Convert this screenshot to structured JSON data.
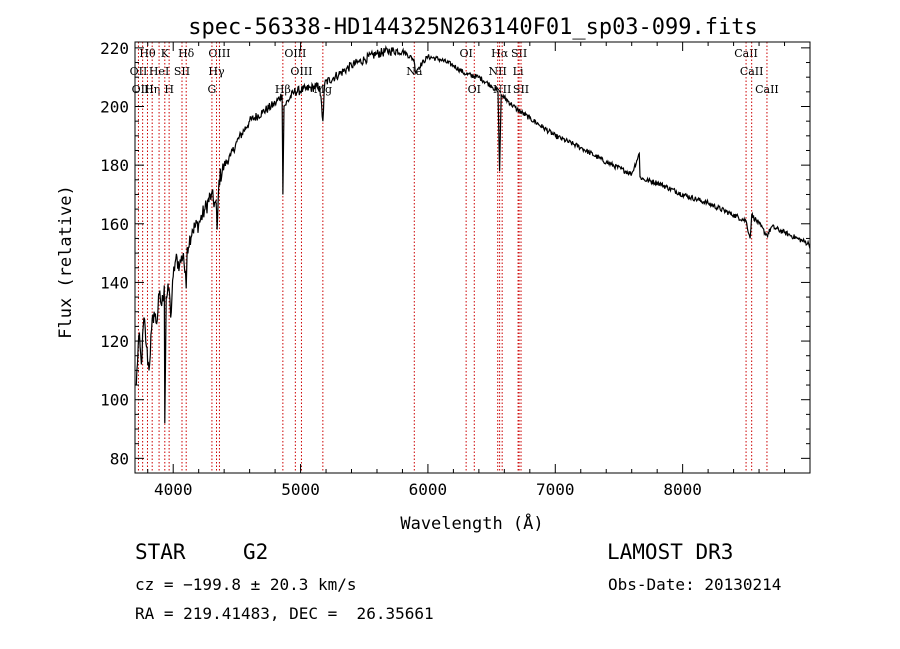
{
  "chart_data": {
    "type": "line",
    "title": "spec-56338-HD144325N263140F01_sp03-099.fits",
    "xlabel": "Wavelength (Å)",
    "ylabel": "Flux (relative)",
    "xlim": [
      3700,
      9000
    ],
    "ylim": [
      75,
      222
    ],
    "x_ticks": [
      4000,
      5000,
      6000,
      7000,
      8000
    ],
    "x_tick_labels": [
      "4000",
      "5000",
      "6000",
      "7000",
      "8000"
    ],
    "y_ticks": [
      80,
      100,
      120,
      140,
      160,
      180,
      200,
      220
    ],
    "y_tick_labels": [
      "80",
      "100",
      "120",
      "140",
      "160",
      "180",
      "200",
      "220"
    ],
    "series": [
      {
        "name": "flux",
        "color": "#000000",
        "x": [
          3710,
          3730,
          3750,
          3770,
          3790,
          3810,
          3830,
          3850,
          3870,
          3890,
          3910,
          3930,
          3934,
          3945,
          3968,
          3980,
          4000,
          4020,
          4050,
          4080,
          4102,
          4110,
          4150,
          4200,
          4250,
          4300,
          4340,
          4345,
          4360,
          4400,
          4450,
          4500,
          4600,
          4700,
          4800,
          4855,
          4861,
          4870,
          4950,
          5050,
          5150,
          5175,
          5190,
          5300,
          5400,
          5500,
          5600,
          5700,
          5800,
          5890,
          5900,
          6000,
          6100,
          6200,
          6300,
          6400,
          6500,
          6550,
          6563,
          6575,
          6600,
          6700,
          6800,
          6900,
          7000,
          7200,
          7400,
          7600,
          7660,
          7665,
          7700,
          7800,
          8000,
          8200,
          8400,
          8498,
          8530,
          8542,
          8600,
          8662,
          8700,
          8800,
          8900,
          9000
        ],
        "y": [
          105,
          122,
          112,
          128,
          118,
          110,
          124,
          130,
          126,
          136,
          132,
          139,
          92,
          135,
          138,
          128,
          142,
          148,
          146,
          150,
          138,
          152,
          158,
          160,
          165,
          170,
          165,
          158,
          175,
          180,
          183,
          188,
          195,
          198,
          201,
          204,
          170,
          200,
          205,
          206,
          207,
          195,
          208,
          211,
          214,
          216,
          218,
          219,
          219,
          216,
          212,
          217,
          216,
          214,
          211,
          210,
          207,
          205,
          178,
          204,
          203,
          199,
          196,
          193,
          190,
          186,
          181,
          177,
          184,
          176,
          175,
          174,
          170,
          167,
          163,
          161,
          155,
          163,
          160,
          156,
          159,
          157,
          155,
          153
        ]
      }
    ],
    "lines": [
      {
        "label": "Hθ",
        "wavelength": 3798,
        "row": 0
      },
      {
        "label": "OII",
        "wavelength": 3727,
        "row": 1
      },
      {
        "label": "OIII",
        "wavelength": 3760,
        "row": 2
      },
      {
        "label": "Hη",
        "wavelength": 3835,
        "row": 2
      },
      {
        "label": "HeI",
        "wavelength": 3889,
        "row": 1
      },
      {
        "label": "K",
        "wavelength": 3934,
        "row": 0
      },
      {
        "label": "H",
        "wavelength": 3968,
        "row": 2
      },
      {
        "label": "SII",
        "wavelength": 4069,
        "row": 1
      },
      {
        "label": "Hδ",
        "wavelength": 4102,
        "row": 0
      },
      {
        "label": "OIII",
        "wavelength": 4363,
        "row": 0
      },
      {
        "label": "Hγ",
        "wavelength": 4340,
        "row": 1
      },
      {
        "label": "G",
        "wavelength": 4304,
        "row": 2
      },
      {
        "label": "Hβ",
        "wavelength": 4861,
        "row": 2
      },
      {
        "label": "OIII",
        "wavelength": 4959,
        "row": 0
      },
      {
        "label": "OIII",
        "wavelength": 5007,
        "row": 1
      },
      {
        "label": "Mg",
        "wavelength": 5175,
        "row": 2
      },
      {
        "label": "Na",
        "wavelength": 5893,
        "row": 1
      },
      {
        "label": "OI",
        "wavelength": 6300,
        "row": 0
      },
      {
        "label": "OI",
        "wavelength": 6364,
        "row": 2
      },
      {
        "label": "Hα",
        "wavelength": 6563,
        "row": 0
      },
      {
        "label": "NII",
        "wavelength": 6548,
        "row": 1
      },
      {
        "label": "NII",
        "wavelength": 6583,
        "row": 2
      },
      {
        "label": "SII",
        "wavelength": 6716,
        "row": 0
      },
      {
        "label": "Li",
        "wavelength": 6708,
        "row": 1
      },
      {
        "label": "SII",
        "wavelength": 6731,
        "row": 2
      },
      {
        "label": "CaII",
        "wavelength": 8498,
        "row": 0
      },
      {
        "label": "CaII",
        "wavelength": 8542,
        "row": 1
      },
      {
        "label": "CaII",
        "wavelength": 8662,
        "row": 2
      }
    ]
  },
  "info": {
    "object_class": "STAR",
    "subclass": "G2",
    "survey": "LAMOST DR3",
    "cz": "cz = −199.8 ± 20.3 km/s",
    "obs_date": "Obs-Date: 20130214",
    "coords": "RA = 219.41483, DEC =  26.35661"
  },
  "colors": {
    "line_marker": "#cc0000",
    "spectrum": "#000000"
  }
}
